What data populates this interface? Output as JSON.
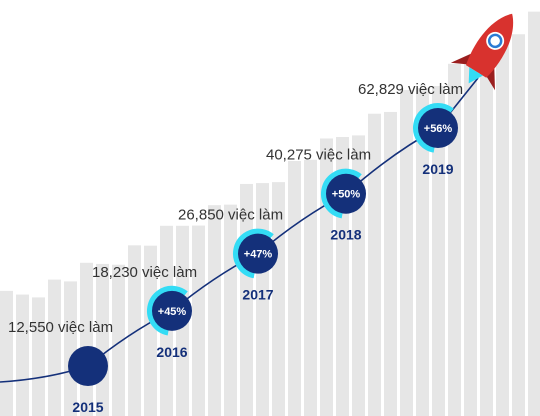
{
  "colors": {
    "navy": "#14307a",
    "cyan": "#33dcf5",
    "bar": "#e6e6e6",
    "text": "#333333",
    "rocket_red": "#d8322e",
    "rocket_dark": "#9a1e1e",
    "rocket_window": "#ffffff",
    "rocket_mark": "#2a7bd4"
  },
  "icons": {
    "rocket": "rocket-icon"
  },
  "chart_data": {
    "type": "line",
    "title": "",
    "xlabel": "",
    "ylabel": "",
    "x": [
      "2015",
      "2016",
      "2017",
      "2018",
      "2019"
    ],
    "series": [
      {
        "values": [
          12550,
          18230,
          26850,
          40275,
          62829
        ],
        "value_labels": [
          "12,550 việc làm",
          "18,230 việc làm",
          "26,850 việc làm",
          "40,275 việc làm",
          "62,829 việc làm"
        ],
        "growth_labels": [
          "",
          "+45%",
          "+47%",
          "+50%",
          "+56%"
        ]
      }
    ],
    "grid": false,
    "legend": "none"
  }
}
